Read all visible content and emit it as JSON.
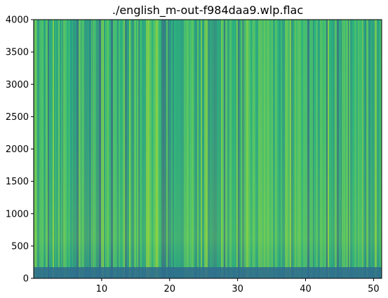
{
  "chart_data": {
    "type": "heatmap",
    "subtype": "spectrogram",
    "title": "./english_m-out-f984daa9.wlp.flac",
    "xlabel": "",
    "ylabel": "",
    "xlim": [
      0.0,
      51.2
    ],
    "ylim": [
      0,
      4000
    ],
    "x_ticks": [
      10,
      20,
      30,
      40,
      50
    ],
    "y_ticks": [
      0,
      500,
      1000,
      1500,
      2000,
      2500,
      3000,
      3500,
      4000
    ],
    "colormap": "viridis",
    "grid": false,
    "legend": "none"
  }
}
